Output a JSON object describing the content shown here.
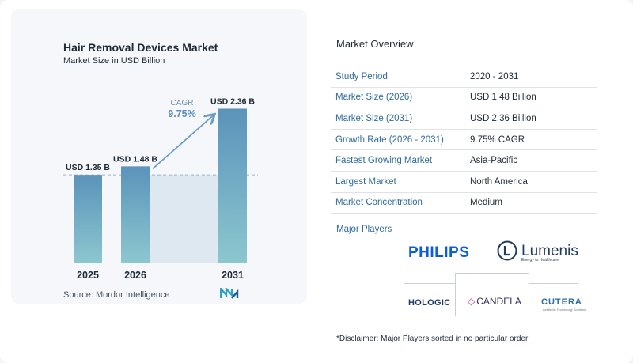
{
  "chart_data": {
    "type": "bar",
    "title": "Hair Removal Devices Market",
    "subtitle": "Market Size in USD Billion",
    "categories": [
      "2025",
      "2026",
      "2031"
    ],
    "values": [
      1.35,
      1.48,
      2.36
    ],
    "value_labels": [
      "USD 1.35 B",
      "USD 1.48 B",
      "USD 2.36 B"
    ],
    "ylim": [
      0,
      2.45
    ],
    "cagr_label": "CAGR",
    "cagr_value": "9.75%",
    "colors": {
      "bar_top": "#5b93ba",
      "bar_bottom": "#8cc7cf",
      "shade": "#dde8f1",
      "arrow": "#6b9cc4",
      "dashed": "#9fb4c8"
    }
  },
  "source": "Source:  Mordor Intelligence",
  "overview": {
    "title": "Market Overview",
    "rows": [
      {
        "label": "Study Period",
        "value": "2020 - 2031"
      },
      {
        "label": "Market Size (2026)",
        "value": "USD 1.48 Billion"
      },
      {
        "label": "Market Size (2031)",
        "value": "USD 2.36 Billion"
      },
      {
        "label": "Growth Rate (2026 - 2031)",
        "value": "9.75% CAGR"
      },
      {
        "label": "Fastest Growing Market",
        "value": "Asia-Pacific"
      },
      {
        "label": "Largest Market",
        "value": "North America"
      },
      {
        "label": "Market Concentration",
        "value": "Medium"
      }
    ]
  },
  "players": {
    "title": "Major Players",
    "logos": {
      "philips": "PHILIPS",
      "lumenis": "Lumenis",
      "lumenis_tag": "Energy to Healthcare",
      "hologic": "HOLOGIC",
      "candela": "CANDELA",
      "cutera": "CUTERA",
      "cutera_tag": "Aesthetic Technology Solutions"
    }
  },
  "disclaimer": "*Disclaimer: Major Players sorted in no particular order"
}
